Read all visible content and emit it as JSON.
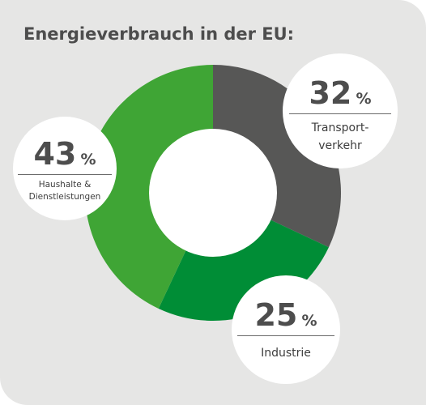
{
  "title": "Energieverbrauch in der EU:",
  "chart_data": {
    "type": "pie",
    "categories": [
      "Transportverkehr",
      "Industrie",
      "Haushalte & Dienstleistungen"
    ],
    "values": [
      32,
      25,
      43
    ],
    "unit": "%",
    "labels": [
      {
        "value": "32",
        "unit": "%",
        "line1": "Transport-",
        "line2": "verkehr"
      },
      {
        "value": "25",
        "unit": "%",
        "line1": "Industrie",
        "line2": ""
      },
      {
        "value": "43",
        "unit": "%",
        "line1": "Haushalte &",
        "line2": "Dienstleistungen"
      }
    ],
    "colors": [
      "#575756",
      "#008d36",
      "#3fa535"
    ]
  }
}
